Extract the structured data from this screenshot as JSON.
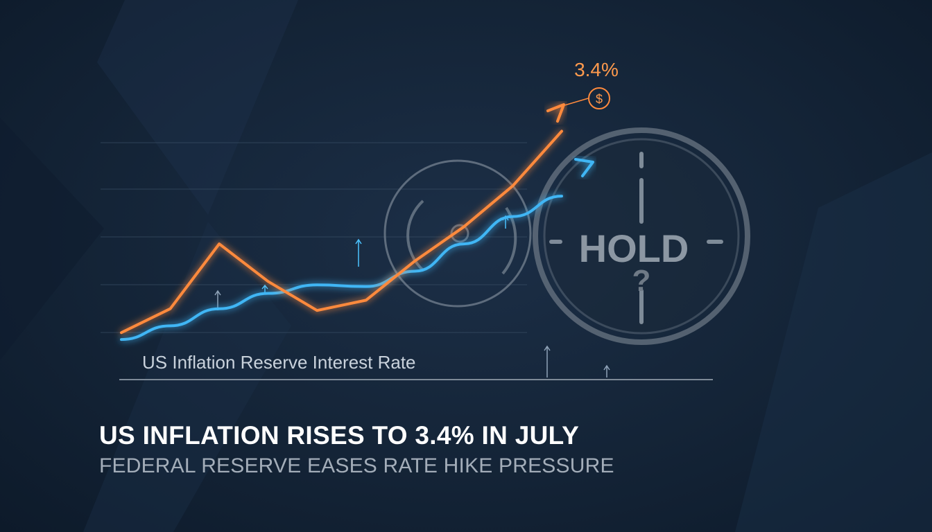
{
  "headline": "US INFLATION RISES TO 3.4% IN JULY",
  "subheadline": "FEDERAL RESERVE EASES RATE HIKE PRESSURE",
  "hold_label": "HOLD",
  "hold_question": "?",
  "currency_symbol": "$",
  "colors": {
    "background": "#142437",
    "inflation_series": "#ff8a3d",
    "interest_rate_series": "#3fb6f5",
    "headline": "#ffffff",
    "subheadline": "#a3adb9"
  },
  "icons": [
    "dollar-icon",
    "hold-clock-icon",
    "gauge-ring-icon",
    "up-arrow-icon"
  ],
  "chart_data": {
    "type": "line",
    "title": "",
    "legend_text": "US Inflation Reserve Interest Rate",
    "callout": "3.4%",
    "axes_labeled": false,
    "grid": true,
    "series": [
      {
        "color": "#ff8a3d",
        "x": [
          0,
          1,
          2,
          3,
          4,
          5,
          6,
          7,
          8,
          9
        ],
        "y": [
          0.3,
          1.0,
          2.9,
          1.8,
          0.95,
          1.25,
          2.4,
          3.4,
          4.6,
          6.2
        ]
      },
      {
        "color": "#3fb6f5",
        "x": [
          0,
          1,
          2,
          3,
          4,
          5,
          6,
          7,
          8,
          9
        ],
        "y": [
          0.1,
          0.5,
          1.0,
          1.45,
          1.7,
          1.65,
          2.1,
          2.9,
          3.7,
          4.3
        ]
      }
    ],
    "xlim": [
      0,
      9
    ],
    "ylim": [
      0,
      7
    ]
  }
}
